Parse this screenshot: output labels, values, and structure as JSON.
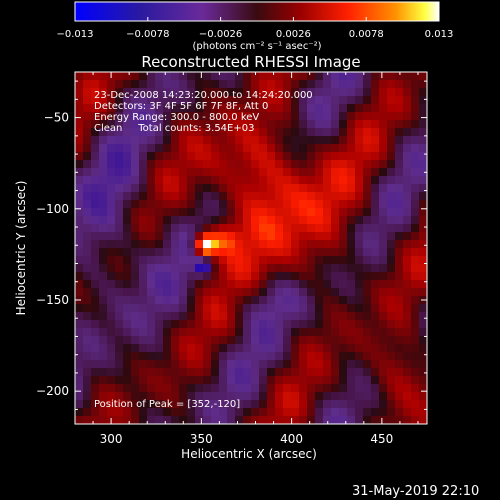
{
  "colorbar": {
    "min": -0.013,
    "max": 0.013,
    "tick_labels": [
      "-0.013",
      "-0.0078",
      "-0.0026",
      "0.0026",
      "0.0078",
      "0.013"
    ],
    "unit_label": "(photons cm⁻² s⁻¹ asec⁻²)"
  },
  "chart_data": {
    "type": "heatmap",
    "title": "Reconstructed RHESSI Image",
    "xlabel": "Heliocentric X (arcsec)",
    "ylabel": "Heliocentric Y (arcsec)",
    "xlim": [
      280,
      475
    ],
    "ylim": [
      -218,
      -25
    ],
    "x_ticks": [
      300,
      350,
      400,
      450
    ],
    "y_ticks": [
      -200,
      -150,
      -100,
      -50
    ],
    "x_tick_labels": [
      "300",
      "350",
      "400",
      "450"
    ],
    "y_tick_labels": [
      "−200",
      "−150",
      "−100",
      "−50"
    ],
    "colormap": [
      "#0000ff",
      "#2a0080",
      "#5a2a8a",
      "#2a1010",
      "#8a0000",
      "#ff1000",
      "#ff8000",
      "#ffff00",
      "#ffffff"
    ],
    "peak": {
      "x": 352,
      "y": -120
    },
    "annotations": [
      "23-Dec-2008 14:23:20.000 to 14:24:20.000",
      "Detectors: 3F 4F 5F 6F 7F 8F, Att 0",
      "Energy Range: 300.0 - 800.0 keV",
      "Clean     Total counts: 3.54E+03"
    ],
    "peak_label": "Position of Peak = [352,-120]"
  },
  "timestamp": "31-May-2019 22:10"
}
